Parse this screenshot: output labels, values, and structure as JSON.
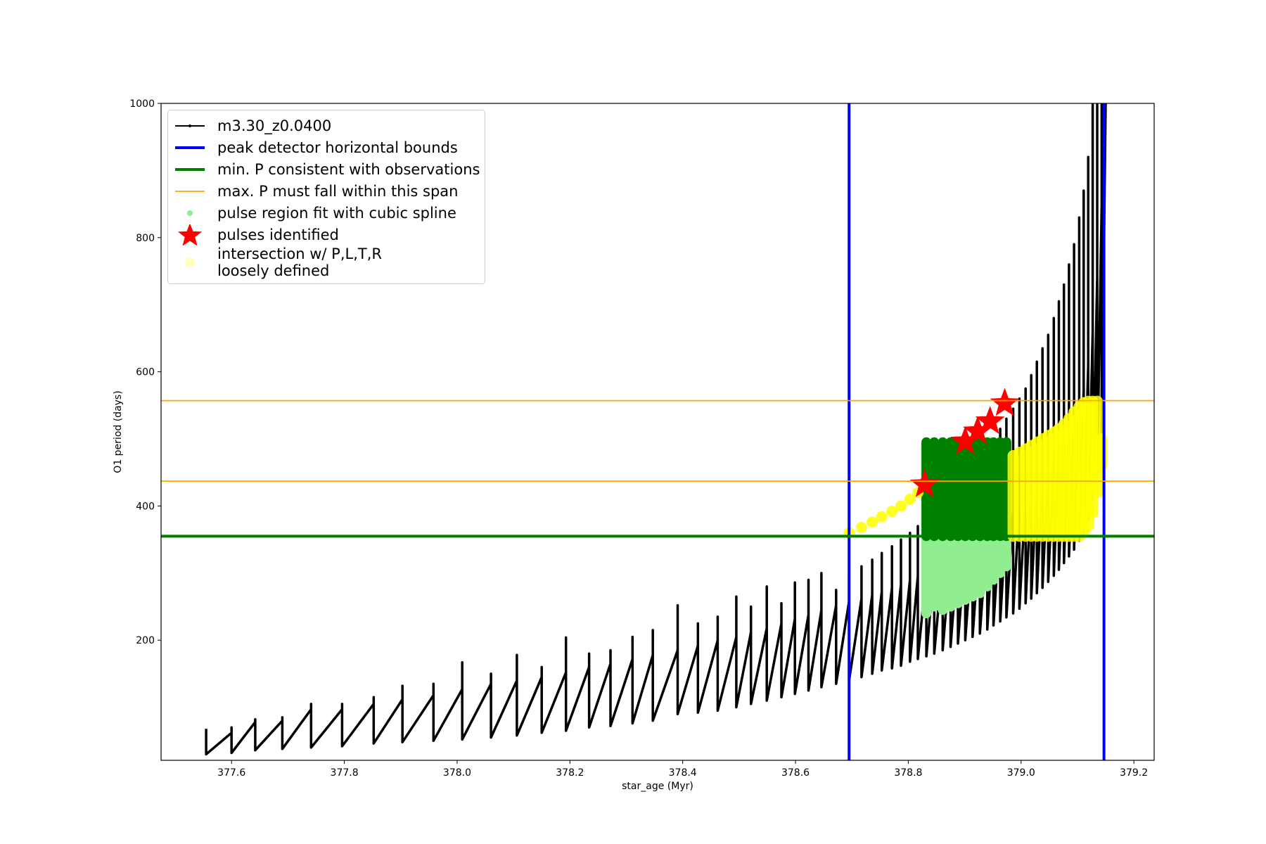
{
  "chart_data": {
    "type": "line",
    "xlabel": "star_age (Myr)",
    "ylabel": "O1 period (days)",
    "xlim": [
      377.475,
      379.236
    ],
    "ylim": [
      21,
      1000
    ],
    "xticks": [
      377.6,
      377.8,
      {
        "value": 378,
        "label": "378.0"
      },
      378.2,
      378.4,
      378.6,
      378.8,
      {
        "value": 379,
        "label": "379.0"
      },
      379.2
    ],
    "yticks": [
      200,
      400,
      600,
      800,
      1000
    ],
    "legend": "upper left",
    "series": [
      {
        "name": "m3.30_z0.0400",
        "type": "line",
        "color": "#000000",
        "x": [
          377.555,
          377.555,
          377.6,
          377.6,
          377.6,
          377.642,
          377.642,
          377.642,
          377.69,
          377.69,
          377.69,
          377.741,
          377.741,
          377.741,
          377.796,
          377.796,
          377.796,
          377.852,
          377.852,
          377.852,
          377.903,
          377.903,
          377.903,
          377.958,
          377.958,
          377.958,
          378.009,
          378.009,
          378.009,
          378.06,
          378.06,
          378.06,
          378.106,
          378.106,
          378.106,
          378.15,
          378.15,
          378.15,
          378.193,
          378.193,
          378.193,
          378.234,
          378.234,
          378.234,
          378.272,
          378.272,
          378.272,
          378.311,
          378.311,
          378.311,
          378.347,
          378.347,
          378.347,
          378.391,
          378.391,
          378.391,
          378.427,
          378.427,
          378.427,
          378.462,
          378.462,
          378.462,
          378.495,
          378.495,
          378.495,
          378.521,
          378.521,
          378.521,
          378.549,
          378.549,
          378.549,
          378.575,
          378.575,
          378.575,
          378.599,
          378.599,
          378.599,
          378.623,
          378.623,
          378.623,
          378.646,
          378.646,
          378.646,
          378.672,
          378.672,
          378.672,
          378.695,
          378.695,
          378.695,
          378.717,
          378.717,
          378.717,
          378.736,
          378.736,
          378.736,
          378.753,
          378.753,
          378.753,
          378.771,
          378.771,
          378.771,
          378.787,
          378.787,
          378.787,
          378.803,
          378.803,
          378.803,
          378.817,
          378.817,
          378.817,
          378.832,
          378.832,
          378.832,
          378.846,
          378.846,
          378.846,
          378.861,
          378.861,
          378.861,
          378.875,
          378.875,
          378.875,
          378.888,
          378.888,
          378.888,
          378.901,
          378.901,
          378.901,
          378.914,
          378.914,
          378.914,
          378.927,
          378.927,
          378.927,
          378.94,
          378.94,
          378.94,
          378.951,
          378.951,
          378.951,
          378.963,
          378.963,
          378.963,
          378.974,
          378.974,
          378.974,
          378.986,
          378.986,
          378.986,
          378.997,
          378.997,
          378.997,
          379.008,
          379.008,
          379.008,
          379.018,
          379.018,
          379.018,
          379.028,
          379.028,
          379.028,
          379.038,
          379.038,
          379.038,
          379.048,
          379.048,
          379.048,
          379.058,
          379.058,
          379.058,
          379.067,
          379.067,
          379.067,
          379.076,
          379.076,
          379.076,
          379.085,
          379.085,
          379.085,
          379.094,
          379.094,
          379.094,
          379.103,
          379.103,
          379.103,
          379.111,
          379.111,
          379.111,
          379.119,
          379.119,
          379.119,
          379.127,
          379.127,
          379.127,
          379.135,
          379.135,
          379.135,
          379.143,
          379.143,
          379.143,
          379.15
        ],
        "values": [
          68,
          30,
          62,
          70,
          32,
          78,
          82,
          36,
          80,
          85,
          38,
          97,
          105,
          40,
          97,
          105,
          42,
          105,
          115,
          46,
          112,
          132,
          48,
          118,
          135,
          50,
          127,
          167,
          52,
          135,
          150,
          55,
          140,
          178,
          58,
          145,
          160,
          62,
          152,
          204,
          65,
          160,
          180,
          70,
          165,
          185,
          72,
          172,
          205,
          76,
          178,
          215,
          80,
          185,
          252,
          90,
          192,
          225,
          92,
          200,
          235,
          95,
          205,
          265,
          100,
          212,
          250,
          105,
          218,
          280,
          110,
          225,
          255,
          115,
          232,
          286,
          120,
          238,
          290,
          125,
          245,
          300,
          130,
          252,
          275,
          135,
          258,
          300,
          140,
          262,
          310,
          145,
          268,
          320,
          150,
          272,
          330,
          155,
          278,
          340,
          158,
          283,
          350,
          162,
          290,
          360,
          168,
          296,
          370,
          172,
          302,
          385,
          176,
          310,
          395,
          180,
          318,
          410,
          185,
          325,
          420,
          190,
          332,
          430,
          195,
          340,
          445,
          200,
          348,
          460,
          205,
          355,
          470,
          210,
          362,
          485,
          216,
          370,
          500,
          222,
          378,
          515,
          228,
          386,
          530,
          234,
          395,
          545,
          240,
          405,
          560,
          247,
          415,
          575,
          255,
          425,
          595,
          262,
          435,
          615,
          270,
          447,
          635,
          278,
          460,
          655,
          287,
          472,
          680,
          296,
          486,
          705,
          305,
          500,
          730,
          315,
          515,
          760,
          325,
          532,
          790,
          335,
          552,
          830,
          348,
          575,
          870,
          360,
          610,
          920,
          380,
          660,
          1000,
          410,
          740,
          1000,
          450,
          850,
          1000,
          500,
          1000
        ]
      },
      {
        "name": "pulse region fit with cubic spline",
        "type": "range",
        "color": "#90ee90",
        "x": [
          378.832,
          378.846,
          378.861,
          378.875,
          378.888,
          378.901,
          378.914,
          378.927,
          378.94,
          378.951,
          378.963,
          378.974
        ],
        "low": [
          240,
          250,
          245,
          250,
          255,
          260,
          265,
          270,
          280,
          290,
          300,
          310
        ],
        "high": [
          355,
          355,
          355,
          355,
          355,
          355,
          355,
          355,
          355,
          355,
          355,
          355
        ]
      },
      {
        "type": "range",
        "color": "#008000",
        "x": [
          378.832,
          378.846,
          378.861,
          378.875,
          378.888,
          378.901,
          378.914,
          378.927,
          378.94,
          378.951,
          378.963,
          378.974
        ],
        "low": [
          355,
          355,
          355,
          355,
          355,
          355,
          355,
          355,
          355,
          355,
          355,
          355
        ],
        "high": [
          495,
          495,
          495,
          495,
          495,
          495,
          495,
          495,
          495,
          495,
          495,
          495
        ]
      },
      {
        "name": "intersection w/ P,L,T,R\nloosely defined",
        "type": "range",
        "color": "#ffff00",
        "x": [
          378.695,
          378.717,
          378.736,
          378.753,
          378.771,
          378.787,
          378.803,
          378.817,
          378.986,
          378.997,
          379.008,
          379.018,
          379.028,
          379.038,
          379.048,
          379.058,
          379.067,
          379.076,
          379.085,
          379.094,
          379.103,
          379.111,
          379.119,
          379.127,
          379.135,
          379.143
        ],
        "low": [
          360,
          368,
          376,
          384,
          392,
          400,
          410,
          420,
          355,
          355,
          355,
          355,
          355,
          355,
          355,
          355,
          355,
          355,
          355,
          355,
          355,
          360,
          370,
          390,
          420,
          460
        ],
        "high": [
          360,
          368,
          376,
          384,
          392,
          400,
          410,
          420,
          475,
          480,
          485,
          490,
          495,
          500,
          505,
          510,
          515,
          522,
          530,
          540,
          548,
          554,
          556,
          556,
          556,
          500
        ]
      },
      {
        "name": "pulses identified",
        "type": "star",
        "color": "#ff0000",
        "x": [
          378.829,
          378.901,
          378.923,
          378.945,
          378.971
        ],
        "values": [
          432,
          496,
          511,
          526,
          553
        ]
      },
      {
        "name": "peak detector horizontal bounds",
        "type": "vline",
        "color": "#0000ff",
        "x": [
          378.695,
          379.147
        ]
      },
      {
        "name": "min. P consistent with observations",
        "type": "hline",
        "color": "#008000",
        "values": [
          355
        ]
      },
      {
        "name": "max. P must fall within this span",
        "type": "hline",
        "color": "#ffa500",
        "values": [
          557,
          437
        ]
      }
    ]
  }
}
